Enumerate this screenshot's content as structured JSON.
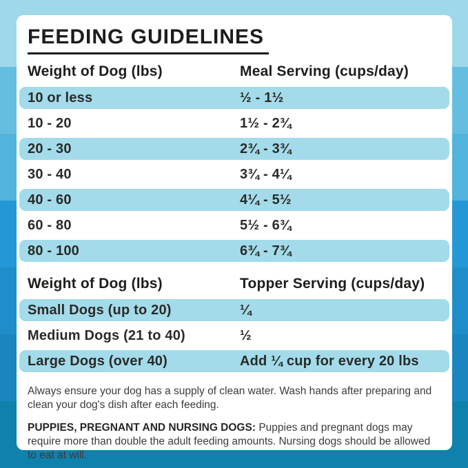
{
  "title": "FEEDING GUIDELINES",
  "meal_table": {
    "headers": {
      "weight": "Weight of Dog (lbs)",
      "serving": "Meal Serving (cups/day)"
    },
    "rows": [
      {
        "weight": "10 or less",
        "serving": "½ - 1½"
      },
      {
        "weight": "10 - 20",
        "serving": "1½ - 2¾"
      },
      {
        "weight": "20 - 30",
        "serving": "2¾ - 3¾"
      },
      {
        "weight": "30 - 40",
        "serving": "3¾ - 4¼"
      },
      {
        "weight": "40 - 60",
        "serving": "4¼ - 5½"
      },
      {
        "weight": "60 - 80",
        "serving": "5½ - 6¾"
      },
      {
        "weight": "80 - 100",
        "serving": "6¾ - 7¾"
      }
    ]
  },
  "topper_table": {
    "headers": {
      "weight": "Weight of Dog (lbs)",
      "serving": "Topper Serving (cups/day)"
    },
    "rows": [
      {
        "weight": "Small Dogs (up to 20)",
        "serving": "¼"
      },
      {
        "weight": "Medium Dogs (21 to 40)",
        "serving": "½"
      },
      {
        "weight": "Large Dogs (over 40)",
        "serving": "Add ¼ cup for every 20 lbs"
      }
    ]
  },
  "notes": {
    "water": "Always ensure your dog has a supply of clean water. Wash hands after preparing and clean your dog's dish after each feeding.",
    "puppies_label": "PUPPIES, PREGNANT AND NURSING DOGS:",
    "puppies_text": "Puppies and pregnant dogs may require more than double the adult feeding amounts. Nursing dogs should be allowed to eat at will."
  },
  "colors": {
    "row_stripe": "#a3dbea",
    "card": "#ffffff",
    "text": "#2a2a28",
    "background_bands": [
      "#9ed8ea",
      "#65bde0",
      "#52b3dc",
      "#2497d6",
      "#1f8dc9",
      "#1a85be",
      "#0f81ad"
    ]
  }
}
